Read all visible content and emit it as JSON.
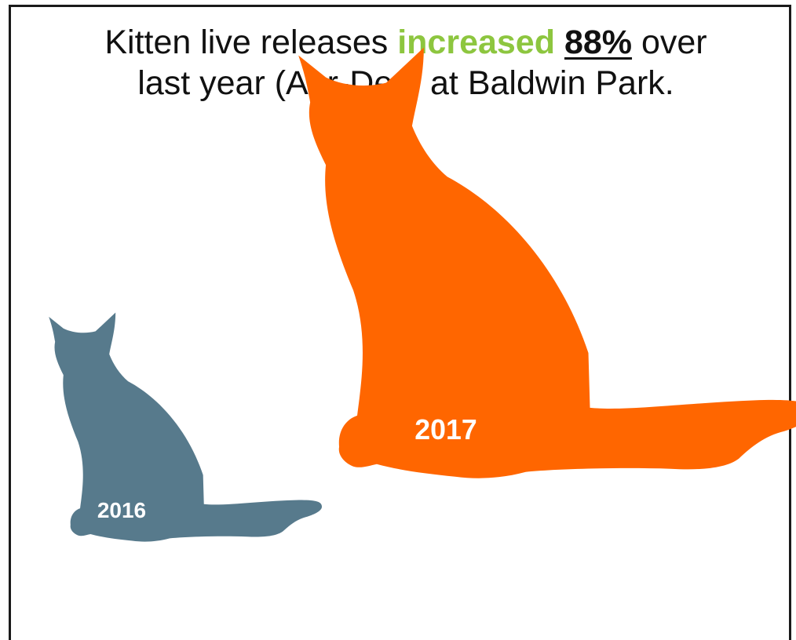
{
  "headline": {
    "line1_before": "Kitten live releases ",
    "line1_highlight": "increased",
    "line1_space": " ",
    "line1_percent": "88%",
    "line1_after": " over",
    "line2": "last year (Apr-Dec) at Baldwin Park."
  },
  "colors": {
    "highlight": "#8dc63f",
    "year_2016": "#577a8c",
    "year_2017": "#ff6600"
  },
  "chart_data": {
    "type": "pictograph",
    "title": "Kitten live releases increased 88% over last year (Apr-Dec) at Baldwin Park.",
    "categories": [
      "2016",
      "2017"
    ],
    "icon": "cat-silhouette-icon",
    "relative_size": [
      1,
      1.88
    ],
    "percent_change": 88
  }
}
